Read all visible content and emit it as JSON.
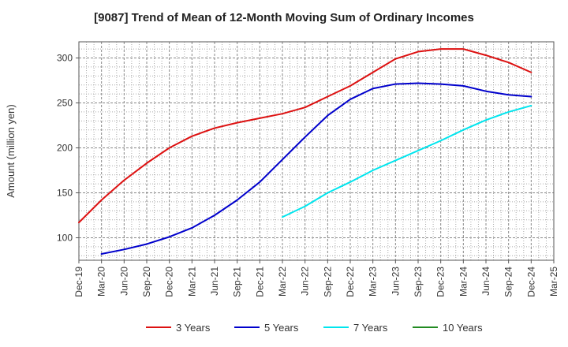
{
  "chart_data": {
    "type": "line",
    "title": "[9087]  Trend of Mean of 12-Month Moving Sum of Ordinary Incomes",
    "xlabel": "",
    "ylabel": "Amount (million yen)",
    "ylim": [
      75,
      318
    ],
    "yticks": [
      100,
      150,
      200,
      250,
      300
    ],
    "grid": true,
    "legend_position": "bottom",
    "categories": [
      "Dec-19",
      "Mar-20",
      "Jun-20",
      "Sep-20",
      "Dec-20",
      "Mar-21",
      "Jun-21",
      "Sep-21",
      "Dec-21",
      "Mar-22",
      "Jun-22",
      "Sep-22",
      "Dec-22",
      "Mar-23",
      "Jun-23",
      "Sep-23",
      "Dec-23",
      "Mar-24",
      "Jun-24",
      "Sep-24",
      "Dec-24",
      "Mar-25"
    ],
    "series": [
      {
        "name": "3 Years",
        "color": "#dd1111",
        "values": [
          117,
          142,
          164,
          183,
          200,
          213,
          222,
          228,
          233,
          238,
          245,
          257,
          269,
          284,
          299,
          307,
          310,
          310,
          303,
          295,
          284,
          null
        ]
      },
      {
        "name": "5 Years",
        "color": "#0000cc",
        "values": [
          null,
          82,
          87,
          93,
          101,
          111,
          125,
          142,
          162,
          187,
          212,
          236,
          254,
          266,
          271,
          272,
          271,
          269,
          263,
          259,
          257,
          null
        ]
      },
      {
        "name": "7 Years",
        "color": "#00e5ee",
        "values": [
          null,
          null,
          null,
          null,
          null,
          null,
          null,
          null,
          null,
          123,
          135,
          150,
          162,
          175,
          186,
          197,
          208,
          220,
          231,
          240,
          247,
          null
        ]
      },
      {
        "name": "10 Years",
        "color": "#228b22",
        "values": [
          null,
          null,
          null,
          null,
          null,
          null,
          null,
          null,
          null,
          null,
          null,
          null,
          null,
          null,
          null,
          null,
          null,
          null,
          null,
          null,
          null,
          null
        ]
      }
    ]
  }
}
